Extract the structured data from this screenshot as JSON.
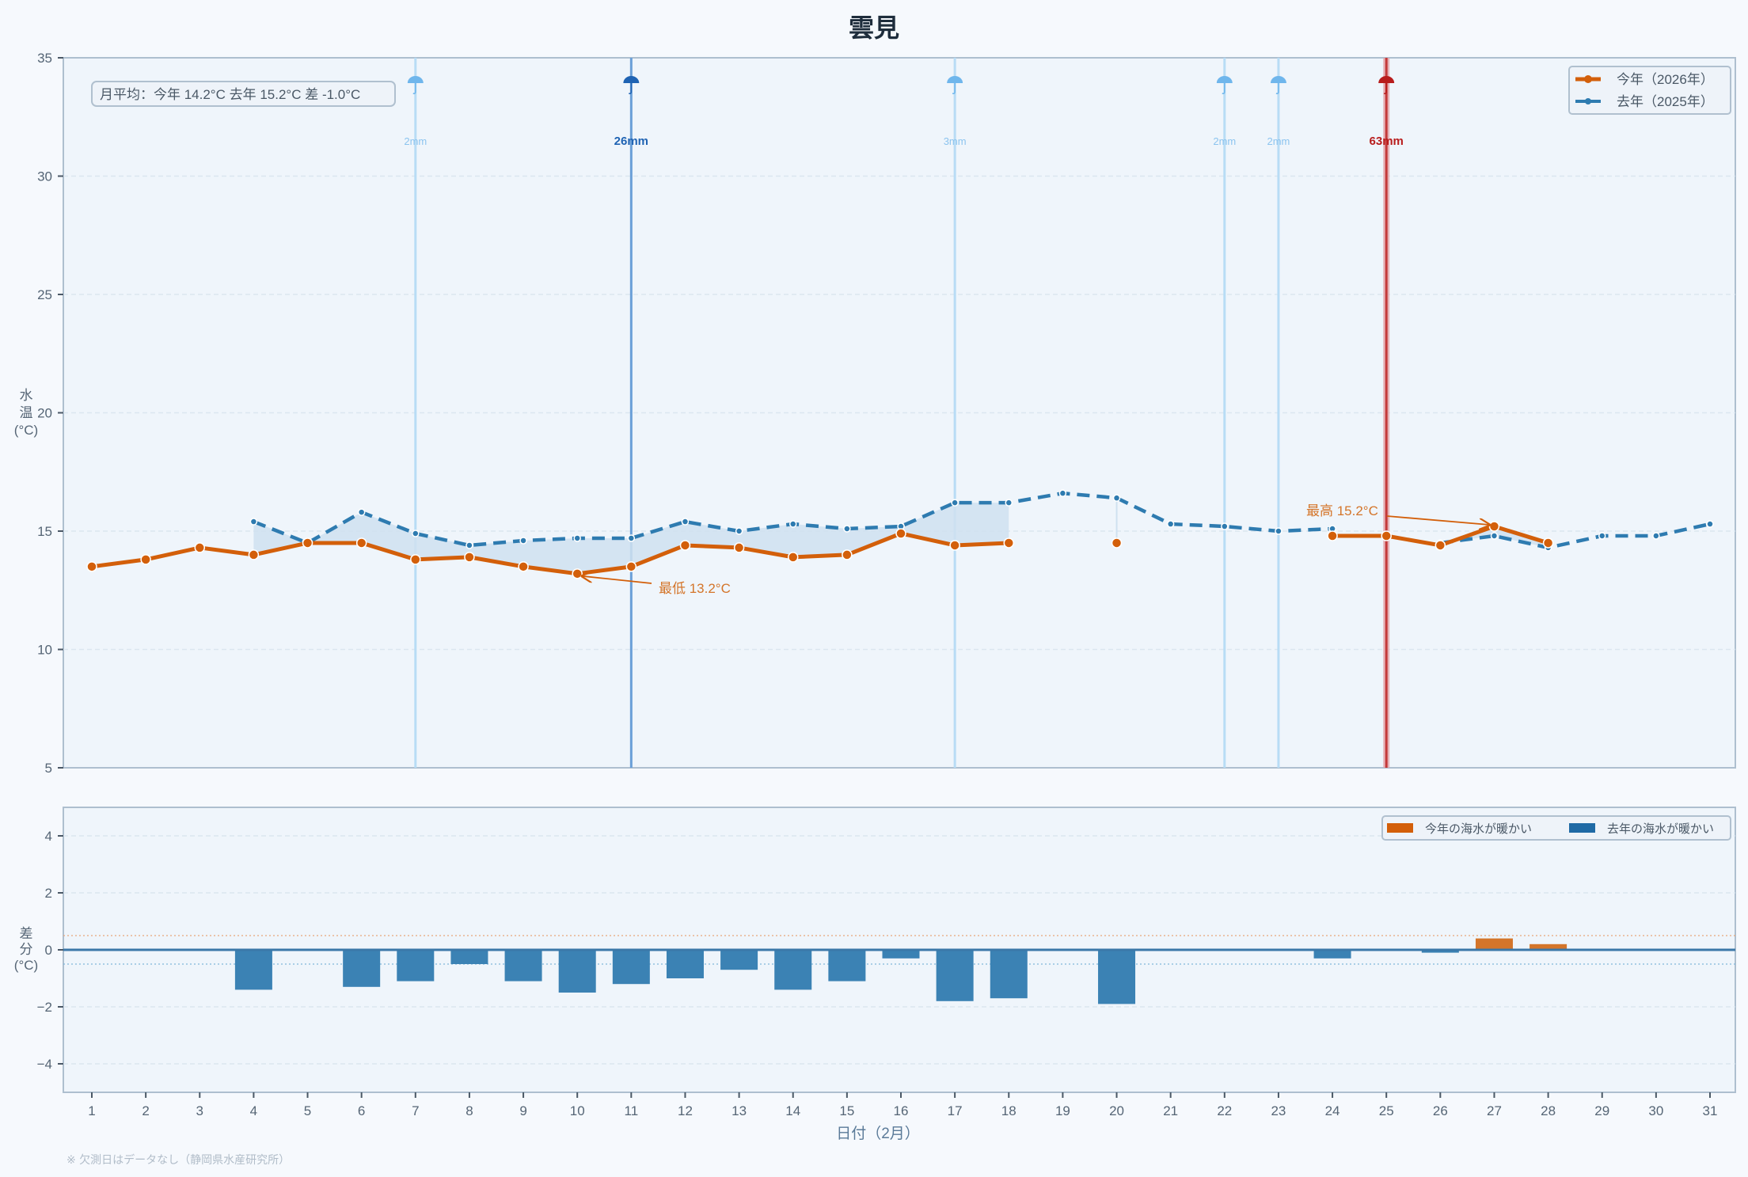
{
  "title": "雲見",
  "footer_note": "※ 欠測日はデータなし（静岡県水産研究所）",
  "summary_box": "月平均：今年 14.2°C  去年 15.2°C  差 -1.0°C",
  "colors": {
    "this_year": "#d35f0a",
    "last_year": "#2e7bb0",
    "fill": "#cfe1f0",
    "rain_light": "#a9d3f5",
    "rain_medium": "#2a6fc4",
    "rain_heavy": "#b81c1c",
    "bar_warmer_this_year": "#d4752a",
    "bar_warmer_last_year": "#3b82b4",
    "background": "#f6f9fd",
    "plot_background": "#eff5fb"
  },
  "chart_data": [
    {
      "type": "line",
      "title": "雲見",
      "xlabel": "日付（2月）",
      "ylabel": "水温(°C)",
      "ylim": [
        5,
        35
      ],
      "yticks": [
        5,
        10,
        15,
        20,
        25,
        30,
        35
      ],
      "x": [
        1,
        2,
        3,
        4,
        5,
        6,
        7,
        8,
        9,
        10,
        11,
        12,
        13,
        14,
        15,
        16,
        17,
        18,
        19,
        20,
        21,
        22,
        23,
        24,
        25,
        26,
        27,
        28,
        29,
        30,
        31
      ],
      "grid": true,
      "legend_position": "upper right",
      "series": [
        {
          "name": "今年（2026年）",
          "style": "solid",
          "values": [
            13.5,
            13.8,
            14.3,
            14.0,
            14.5,
            14.5,
            13.8,
            13.9,
            13.5,
            13.2,
            13.5,
            14.4,
            14.3,
            13.9,
            14.0,
            14.9,
            14.4,
            14.5,
            null,
            14.5,
            null,
            null,
            null,
            14.8,
            14.8,
            14.4,
            15.2,
            14.5,
            null,
            null,
            null
          ]
        },
        {
          "name": "去年（2025年）",
          "style": "dashed",
          "values": [
            null,
            null,
            null,
            15.4,
            14.5,
            15.8,
            14.9,
            14.4,
            14.6,
            14.7,
            14.7,
            15.4,
            15.0,
            15.3,
            15.1,
            15.2,
            16.2,
            16.2,
            16.6,
            16.4,
            15.3,
            15.2,
            15.0,
            15.1,
            null,
            14.5,
            14.8,
            14.3,
            14.8,
            14.8,
            15.3
          ]
        }
      ],
      "rain_markers": [
        {
          "day": 7,
          "label": "2mm",
          "level": "light"
        },
        {
          "day": 11,
          "label": "26mm",
          "level": "medium"
        },
        {
          "day": 17,
          "label": "3mm",
          "level": "light"
        },
        {
          "day": 22,
          "label": "2mm",
          "level": "light"
        },
        {
          "day": 23,
          "label": "2mm",
          "level": "light"
        },
        {
          "day": 25,
          "label": "63mm",
          "level": "heavy"
        }
      ],
      "annotations": [
        {
          "text": "最低 13.2°C",
          "day": 10,
          "value": 13.2
        },
        {
          "text": "最高 15.2°C",
          "day": 27,
          "value": 15.2
        }
      ]
    },
    {
      "type": "bar",
      "xlabel": "日付（2月）",
      "ylabel": "差分(°C)",
      "ylim": [
        -5,
        5
      ],
      "yticks": [
        -4,
        -2,
        0,
        2,
        4
      ],
      "reference_lines": [
        0.5,
        -0.5
      ],
      "categories": [
        1,
        2,
        3,
        4,
        5,
        6,
        7,
        8,
        9,
        10,
        11,
        12,
        13,
        14,
        15,
        16,
        17,
        18,
        19,
        20,
        21,
        22,
        23,
        24,
        25,
        26,
        27,
        28,
        29,
        30,
        31
      ],
      "values": [
        null,
        null,
        null,
        -1.4,
        0.0,
        -1.3,
        -1.1,
        -0.5,
        -1.1,
        -1.5,
        -1.2,
        -1.0,
        -0.7,
        -1.4,
        -1.1,
        -0.3,
        -1.8,
        -1.7,
        null,
        -1.9,
        null,
        null,
        null,
        -0.3,
        null,
        -0.1,
        0.4,
        0.2,
        null,
        null,
        null
      ],
      "legend": [
        "今年の海水が暖かい",
        "去年の海水が暖かい"
      ]
    }
  ]
}
